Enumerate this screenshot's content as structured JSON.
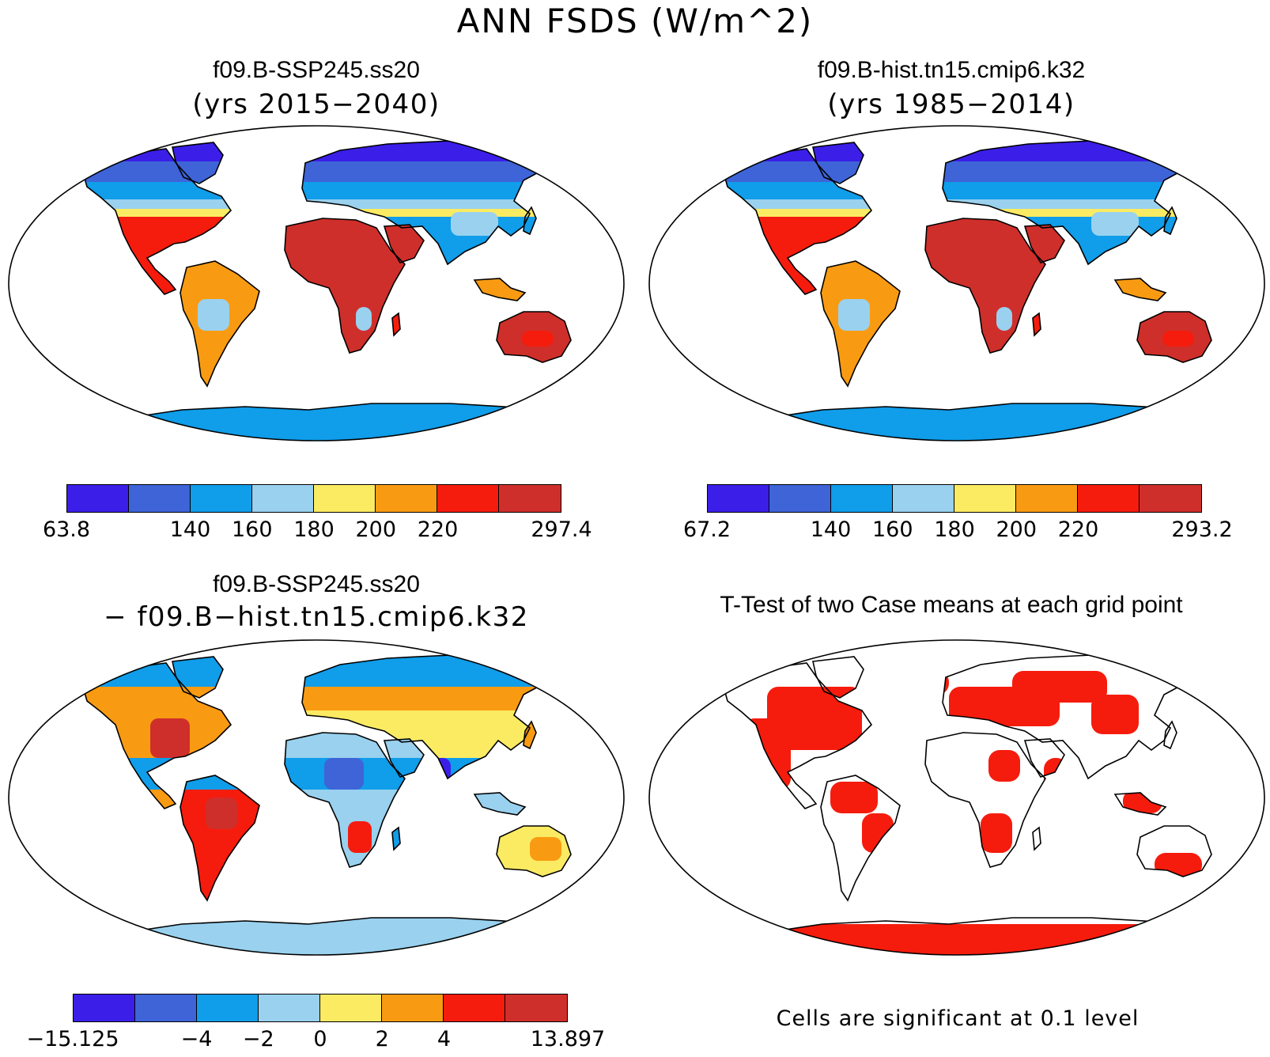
{
  "figure": {
    "title": "ANN FSDS (W/m^2)"
  },
  "panels": [
    {
      "id": "case1",
      "title": "f09.B-SSP245.ss20",
      "subtitle": "(yrs 2015−2040)",
      "colorbar": {
        "colors": [
          "#3b1fe8",
          "#3e64d8",
          "#109de9",
          "#99d1ef",
          "#fbeb63",
          "#f99b12",
          "#f51c0d",
          "#cf2f2b"
        ],
        "labels": [
          "63.8",
          "140",
          "160",
          "180",
          "200",
          "220",
          "297.4"
        ]
      }
    },
    {
      "id": "case2",
      "title": "f09.B-hist.tn15.cmip6.k32",
      "subtitle": "(yrs 1985−2014)",
      "colorbar": {
        "colors": [
          "#3b1fe8",
          "#3e64d8",
          "#109de9",
          "#99d1ef",
          "#fbeb63",
          "#f99b12",
          "#f51c0d",
          "#cf2f2b"
        ],
        "labels": [
          "67.2",
          "140",
          "160",
          "180",
          "200",
          "220",
          "293.2"
        ]
      }
    },
    {
      "id": "diff",
      "title": "f09.B-SSP245.ss20",
      "subtitle": "− f09.B−hist.tn15.cmip6.k32",
      "colorbar": {
        "colors": [
          "#3b1fe8",
          "#3e64d8",
          "#109de9",
          "#99d1ef",
          "#fbeb63",
          "#f99b12",
          "#f51c0d",
          "#cf2f2b"
        ],
        "labels": [
          "−15.125",
          "−4",
          "−2",
          "0",
          "2",
          "4",
          "13.897"
        ]
      }
    },
    {
      "id": "ttest",
      "title": "T-Test of two Case means at each grid point",
      "note": "Cells are significant at 0.1 level",
      "sig_color": "#f51c0d"
    }
  ]
}
